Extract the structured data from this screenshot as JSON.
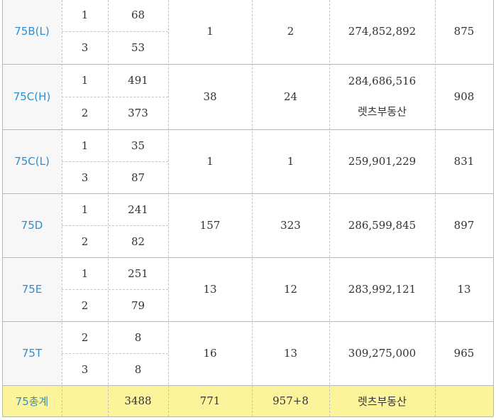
{
  "rows": [
    {
      "type": "75B(L)",
      "subs": [
        {
          "a": "1",
          "b": "68"
        },
        {
          "a": "3",
          "b": "53"
        }
      ],
      "c": "1",
      "d": "2",
      "e": [
        "274,852,892"
      ],
      "f": "875"
    },
    {
      "type": "75C(H)",
      "subs": [
        {
          "a": "1",
          "b": "491"
        },
        {
          "a": "2",
          "b": "373"
        }
      ],
      "c": "38",
      "d": "24",
      "e": [
        "284,686,516",
        "렛츠부동산"
      ],
      "f": "908"
    },
    {
      "type": "75C(L)",
      "subs": [
        {
          "a": "1",
          "b": "35"
        },
        {
          "a": "3",
          "b": "87"
        }
      ],
      "c": "1",
      "d": "1",
      "e": [
        "259,901,229"
      ],
      "f": "831"
    },
    {
      "type": "75D",
      "subs": [
        {
          "a": "1",
          "b": "241"
        },
        {
          "a": "2",
          "b": "82"
        }
      ],
      "c": "157",
      "d": "323",
      "e": [
        "286,599,845"
      ],
      "f": "897"
    },
    {
      "type": "75E",
      "subs": [
        {
          "a": "1",
          "b": "251"
        },
        {
          "a": "2",
          "b": "79"
        }
      ],
      "c": "13",
      "d": "12",
      "e": [
        "283,992,121"
      ],
      "f": "13"
    },
    {
      "type": "75T",
      "subs": [
        {
          "a": "2",
          "b": "8"
        },
        {
          "a": "3",
          "b": "8"
        }
      ],
      "c": "16",
      "d": "13",
      "e": [
        "309,275,000"
      ],
      "f": "965"
    }
  ],
  "total": {
    "label": "75총계",
    "a": "",
    "b": "3488",
    "c": "771",
    "d": "957+8",
    "e": "렛츠부동산",
    "f": ""
  },
  "colors": {
    "type_text": "#2b8fd6",
    "type_bg": "#f7f7f7",
    "total_bg": "#fcf49a",
    "border": "#c4c4c4"
  }
}
